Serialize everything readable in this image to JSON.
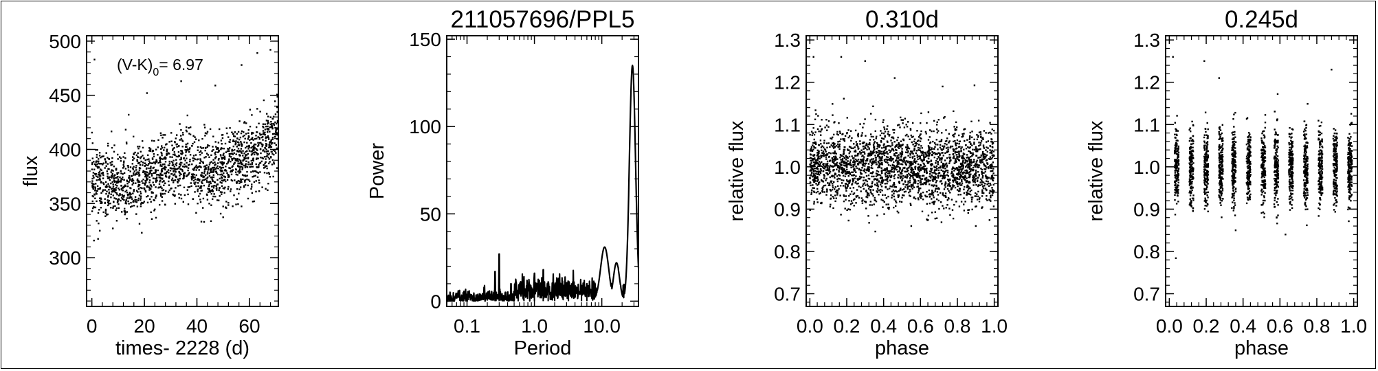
{
  "chart_data": [
    {
      "type": "scatter",
      "title": "",
      "xlabel": "times- 2228 (d)",
      "ylabel": "flux",
      "xlim": [
        -2,
        71
      ],
      "ylim": [
        255,
        505
      ],
      "xticks": [
        0,
        20,
        40,
        60
      ],
      "yticks": [
        300,
        350,
        400,
        450,
        500
      ],
      "annotation": {
        "main": "(V-K)",
        "sub": "0",
        "rest": "= 6.97"
      },
      "trend": [
        [
          0,
          372
        ],
        [
          10,
          366
        ],
        [
          20,
          372
        ],
        [
          30,
          380
        ],
        [
          36,
          393
        ],
        [
          40,
          378
        ],
        [
          50,
          383
        ],
        [
          60,
          392
        ],
        [
          66,
          400
        ],
        [
          71,
          418
        ]
      ],
      "scatter_sigma": 16,
      "outliers": [
        [
          1,
          483
        ],
        [
          14,
          432
        ],
        [
          21,
          452
        ],
        [
          34,
          463
        ],
        [
          47,
          459
        ],
        [
          57,
          478
        ],
        [
          63,
          489
        ],
        [
          68,
          492
        ],
        [
          8,
          327
        ],
        [
          19,
          323
        ]
      ]
    },
    {
      "type": "line",
      "title": "211057696/PPL5",
      "xlabel": "Period",
      "ylabel": "Power",
      "xscale": "log",
      "xlim": [
        0.05,
        35
      ],
      "ylim": [
        -3,
        152
      ],
      "xticks": [
        0.1,
        1.0,
        10.0
      ],
      "xticklabels": [
        "0.1",
        "1.0",
        "10.0"
      ],
      "yticks": [
        0,
        50,
        100,
        150
      ],
      "spikes": [
        [
          0.26,
          17
        ],
        [
          0.3,
          27
        ],
        [
          0.45,
          10
        ],
        [
          0.7,
          14
        ],
        [
          1.0,
          16
        ],
        [
          1.35,
          18
        ],
        [
          1.6,
          11
        ],
        [
          2.0,
          9
        ],
        [
          3.2,
          8
        ],
        [
          5.0,
          9
        ],
        [
          6.0,
          10
        ]
      ],
      "peaks": [
        [
          11.0,
          31,
          0.06
        ],
        [
          16.5,
          22,
          0.045
        ],
        [
          28.5,
          135,
          0.045
        ]
      ]
    },
    {
      "type": "scatter",
      "title": "0.310d",
      "xlabel": "phase",
      "ylabel": "relative flux",
      "xlim": [
        -0.02,
        1.02
      ],
      "ylim": [
        0.67,
        1.31
      ],
      "xticks": [
        0.0,
        0.2,
        0.4,
        0.6,
        0.8,
        1.0
      ],
      "xticklabels": [
        "0.0",
        "0.2",
        "0.4",
        "0.6",
        "0.8",
        "1.0"
      ],
      "yticks": [
        0.7,
        0.8,
        0.9,
        1.0,
        1.1,
        1.2,
        1.3
      ],
      "yticklabels": [
        "0.7",
        "0.8",
        "0.9",
        "1.0",
        "1.1",
        "1.2",
        "1.3"
      ],
      "center": 1.0,
      "scatter_sigma": 0.045,
      "outliers": [
        [
          0.02,
          1.26
        ],
        [
          0.3,
          1.25
        ],
        [
          0.17,
          1.26
        ],
        [
          0.72,
          1.19
        ],
        [
          0.46,
          1.21
        ],
        [
          0.55,
          0.86
        ],
        [
          0.9,
          0.86
        ]
      ]
    },
    {
      "type": "scatter",
      "title": "0.245d",
      "xlabel": "phase",
      "ylabel": "relative flux",
      "xlim": [
        -0.02,
        1.02
      ],
      "ylim": [
        0.67,
        1.31
      ],
      "xticks": [
        0.0,
        0.2,
        0.4,
        0.6,
        0.8,
        1.0
      ],
      "xticklabels": [
        "0.0",
        "0.2",
        "0.4",
        "0.6",
        "0.8",
        "1.0"
      ],
      "yticks": [
        0.7,
        0.8,
        0.9,
        1.0,
        1.1,
        1.2,
        1.3
      ],
      "yticklabels": [
        "0.7",
        "0.8",
        "0.9",
        "1.0",
        "1.1",
        "1.2",
        "1.3"
      ],
      "stripe_centers": [
        0.04,
        0.12,
        0.2,
        0.28,
        0.35,
        0.43,
        0.51,
        0.58,
        0.66,
        0.74,
        0.82,
        0.9,
        0.98
      ],
      "center": 1.0,
      "scatter_sigma": 0.045,
      "outliers": [
        [
          0.02,
          1.26
        ],
        [
          0.19,
          1.25
        ],
        [
          0.27,
          1.21
        ],
        [
          0.88,
          1.23
        ],
        [
          0.36,
          0.85
        ],
        [
          0.63,
          0.84
        ]
      ]
    }
  ]
}
